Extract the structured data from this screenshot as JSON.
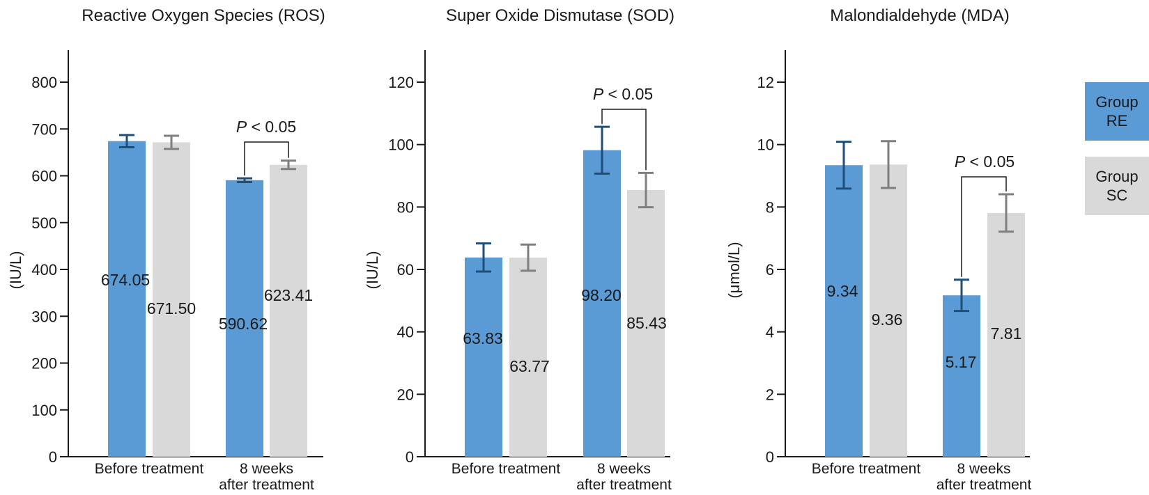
{
  "chart_data": [
    {
      "type": "bar",
      "title": "Reactive Oxygen Species (ROS)",
      "ylabel": "(IU/L)",
      "ylim": [
        0,
        800
      ],
      "yticks": [
        0,
        100,
        200,
        300,
        400,
        500,
        600,
        700,
        800
      ],
      "categories": [
        "Before treatment",
        "8 weeks\nafter treatment"
      ],
      "series": [
        {
          "name": "Group RE",
          "values": [
            674.05,
            590.62
          ],
          "errors": [
            13,
            4
          ],
          "labels": [
            "674.05",
            "590.62"
          ]
        },
        {
          "name": "Group SC",
          "values": [
            671.5,
            623.41
          ],
          "errors": [
            14,
            9
          ],
          "labels": [
            "671.50",
            "623.41"
          ]
        }
      ],
      "annotations": [
        {
          "category": 1,
          "text": "P < 0.05"
        }
      ]
    },
    {
      "type": "bar",
      "title": "Super Oxide Dismutase (SOD)",
      "ylabel": "(IU/L)",
      "ylim": [
        0,
        120
      ],
      "yticks": [
        0,
        20,
        40,
        60,
        80,
        100,
        120
      ],
      "categories": [
        "Before treatment",
        "8 weeks\nafter treatment"
      ],
      "series": [
        {
          "name": "Group RE",
          "values": [
            63.83,
            98.2
          ],
          "errors": [
            4.5,
            7.5
          ],
          "labels": [
            "63.83",
            "98.20"
          ]
        },
        {
          "name": "Group SC",
          "values": [
            63.77,
            85.43
          ],
          "errors": [
            4.2,
            5.5
          ],
          "labels": [
            "63.77",
            "85.43"
          ]
        }
      ],
      "annotations": [
        {
          "category": 1,
          "text": "P < 0.05"
        }
      ]
    },
    {
      "type": "bar",
      "title": "Malondialdehyde (MDA)",
      "ylabel": "(μmol/L)",
      "ylim": [
        0,
        12
      ],
      "yticks": [
        0,
        2,
        4,
        6,
        8,
        10,
        12
      ],
      "categories": [
        "Before treatment",
        "8 weeks\nafter treatment"
      ],
      "series": [
        {
          "name": "Group RE",
          "values": [
            9.34,
            5.17
          ],
          "errors": [
            0.75,
            0.5
          ],
          "labels": [
            "9.34",
            "5.17"
          ]
        },
        {
          "name": "Group SC",
          "values": [
            9.36,
            7.81
          ],
          "errors": [
            0.75,
            0.6
          ],
          "labels": [
            "9.36",
            "7.81"
          ]
        }
      ],
      "annotations": [
        {
          "category": 1,
          "text": "P < 0.05"
        }
      ]
    }
  ],
  "legend": [
    {
      "label": "Group\nRE",
      "color": "#5b9bd5"
    },
    {
      "label": "Group\nSC",
      "color": "#d9d9d9"
    }
  ],
  "colors": {
    "re_bar": "#5b9bd5",
    "sc_bar": "#d9d9d9",
    "re_error": "#1f4e79",
    "sc_error": "#7f7f7f"
  }
}
